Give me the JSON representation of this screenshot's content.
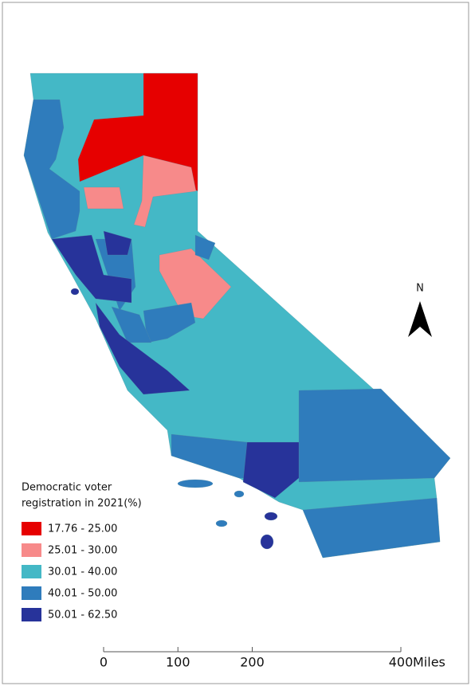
{
  "legend": {
    "title": [
      "Democratic voter",
      "registration in 2021(%)"
    ],
    "classes": [
      {
        "label": "17.76 - 25.00",
        "color": "#e60000"
      },
      {
        "label": "25.01 - 30.00",
        "color": "#f78a8a"
      },
      {
        "label": "30.01 - 40.00",
        "color": "#44b8c6"
      },
      {
        "label": "40.01 - 50.00",
        "color": "#2f7cbc"
      },
      {
        "label": "50.01 - 62.50",
        "color": "#27339a"
      }
    ]
  },
  "north_arrow": "N",
  "scale_bar": {
    "ticks": [
      0,
      100,
      200,
      400
    ],
    "unit": "Miles"
  }
}
